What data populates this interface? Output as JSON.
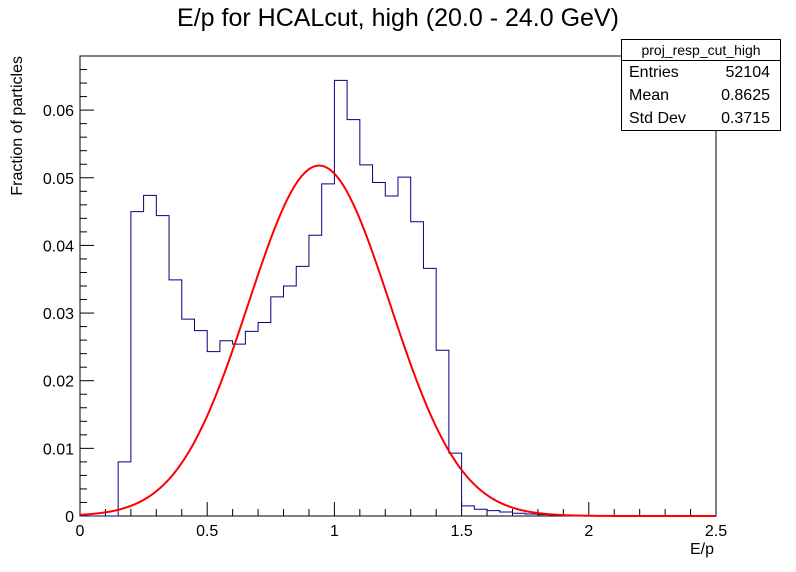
{
  "chart_data": {
    "type": "histogram",
    "title": "E/p for HCALcut, high (20.0 - 24.0 GeV)",
    "xlabel": "E/p",
    "ylabel": "Fraction of particles",
    "xlim": [
      0,
      2.5
    ],
    "ylim": [
      0,
      0.068
    ],
    "x_ticks": [
      "0",
      "0.5",
      "1",
      "1.5",
      "2",
      "2.5"
    ],
    "y_ticks": [
      "0",
      "0.01",
      "0.02",
      "0.03",
      "0.04",
      "0.05",
      "0.06"
    ],
    "bin_width": 0.05,
    "bin_edges_start": 0.0,
    "histogram": {
      "color": "#000080",
      "values": [
        0,
        0,
        0,
        0.008,
        0.045,
        0.0474,
        0.0444,
        0.0349,
        0.0291,
        0.0274,
        0.0243,
        0.0259,
        0.0254,
        0.0273,
        0.0286,
        0.0324,
        0.034,
        0.0369,
        0.0415,
        0.0491,
        0.0644,
        0.0586,
        0.0519,
        0.0493,
        0.0473,
        0.0501,
        0.0435,
        0.0366,
        0.0245,
        0.0093,
        0.0015,
        0.001,
        0.0008,
        0.0006,
        0.0004,
        0.0003,
        0.0002,
        0.0001,
        0.0001,
        0.0001,
        0,
        0,
        0,
        0,
        0,
        0,
        0,
        0,
        0,
        0
      ]
    },
    "fit": {
      "color": "#ff0000",
      "type": "gaussian",
      "amplitude": 0.0518,
      "mean": 0.94,
      "sigma": 0.278
    },
    "stats_box": {
      "name": "proj_resp_cut_high",
      "rows": [
        {
          "label": "Entries",
          "value": "52104"
        },
        {
          "label": "Mean",
          "value": "0.8625"
        },
        {
          "label": "Std Dev",
          "value": "0.3715"
        }
      ]
    }
  }
}
